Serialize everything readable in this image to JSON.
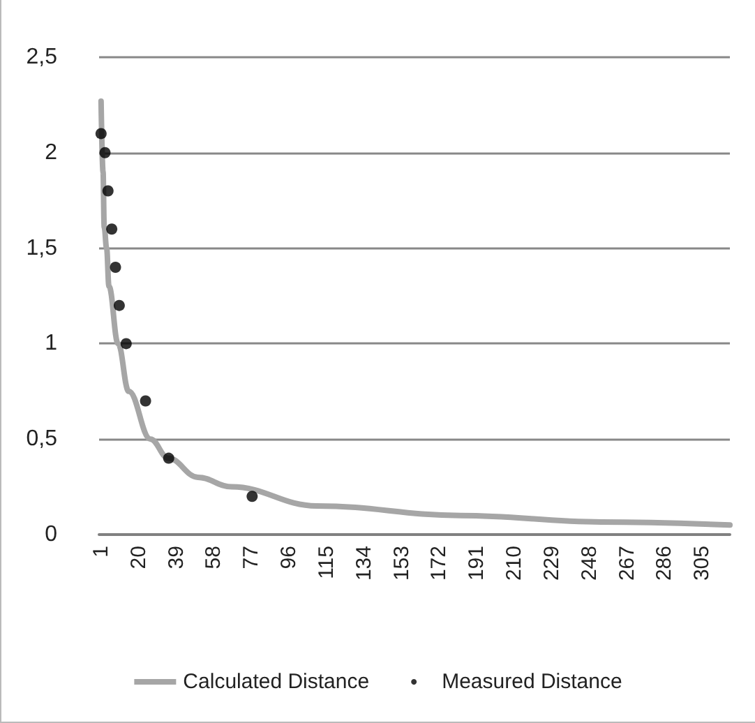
{
  "chart_data": {
    "type": "line",
    "series": [
      {
        "name": "Calculated Distance",
        "type": "line",
        "color": "#a6a6a6",
        "marker": "none",
        "x": [
          1,
          2,
          2.6,
          3.8,
          5,
          9.6,
          15,
          26,
          35,
          50,
          67,
          110,
          183,
          254,
          319
        ],
        "values": [
          2.27,
          1.9,
          1.61,
          1.5,
          1.3,
          1.0,
          0.75,
          0.5,
          0.4,
          0.3,
          0.25,
          0.15,
          0.1,
          0.066,
          0.05
        ]
      },
      {
        "name": "Measured Distance",
        "type": "scatter",
        "color": "#000000",
        "marker": "circle",
        "x": [
          1,
          3,
          4.5,
          6.4,
          8.3,
          10.2,
          13.7,
          23.5,
          35.2,
          77.4
        ],
        "values": [
          2.1,
          2.0,
          1.8,
          1.6,
          1.4,
          1.2,
          1.0,
          0.7,
          0.4,
          0.2
        ]
      }
    ],
    "xlim": [
      0,
      319
    ],
    "xticks": [
      1,
      20,
      39,
      58,
      77,
      96,
      115,
      134,
      153,
      172,
      191,
      210,
      229,
      248,
      267,
      286,
      305
    ],
    "ylim": [
      0,
      2.5
    ],
    "yticks": [
      0,
      {
        "value": 0.5,
        "label": "0,5"
      },
      1,
      {
        "value": 1.5,
        "label": "1,5"
      },
      2,
      {
        "value": 2.5,
        "label": "2,5"
      }
    ],
    "grid": "y",
    "legend": "bottom"
  }
}
